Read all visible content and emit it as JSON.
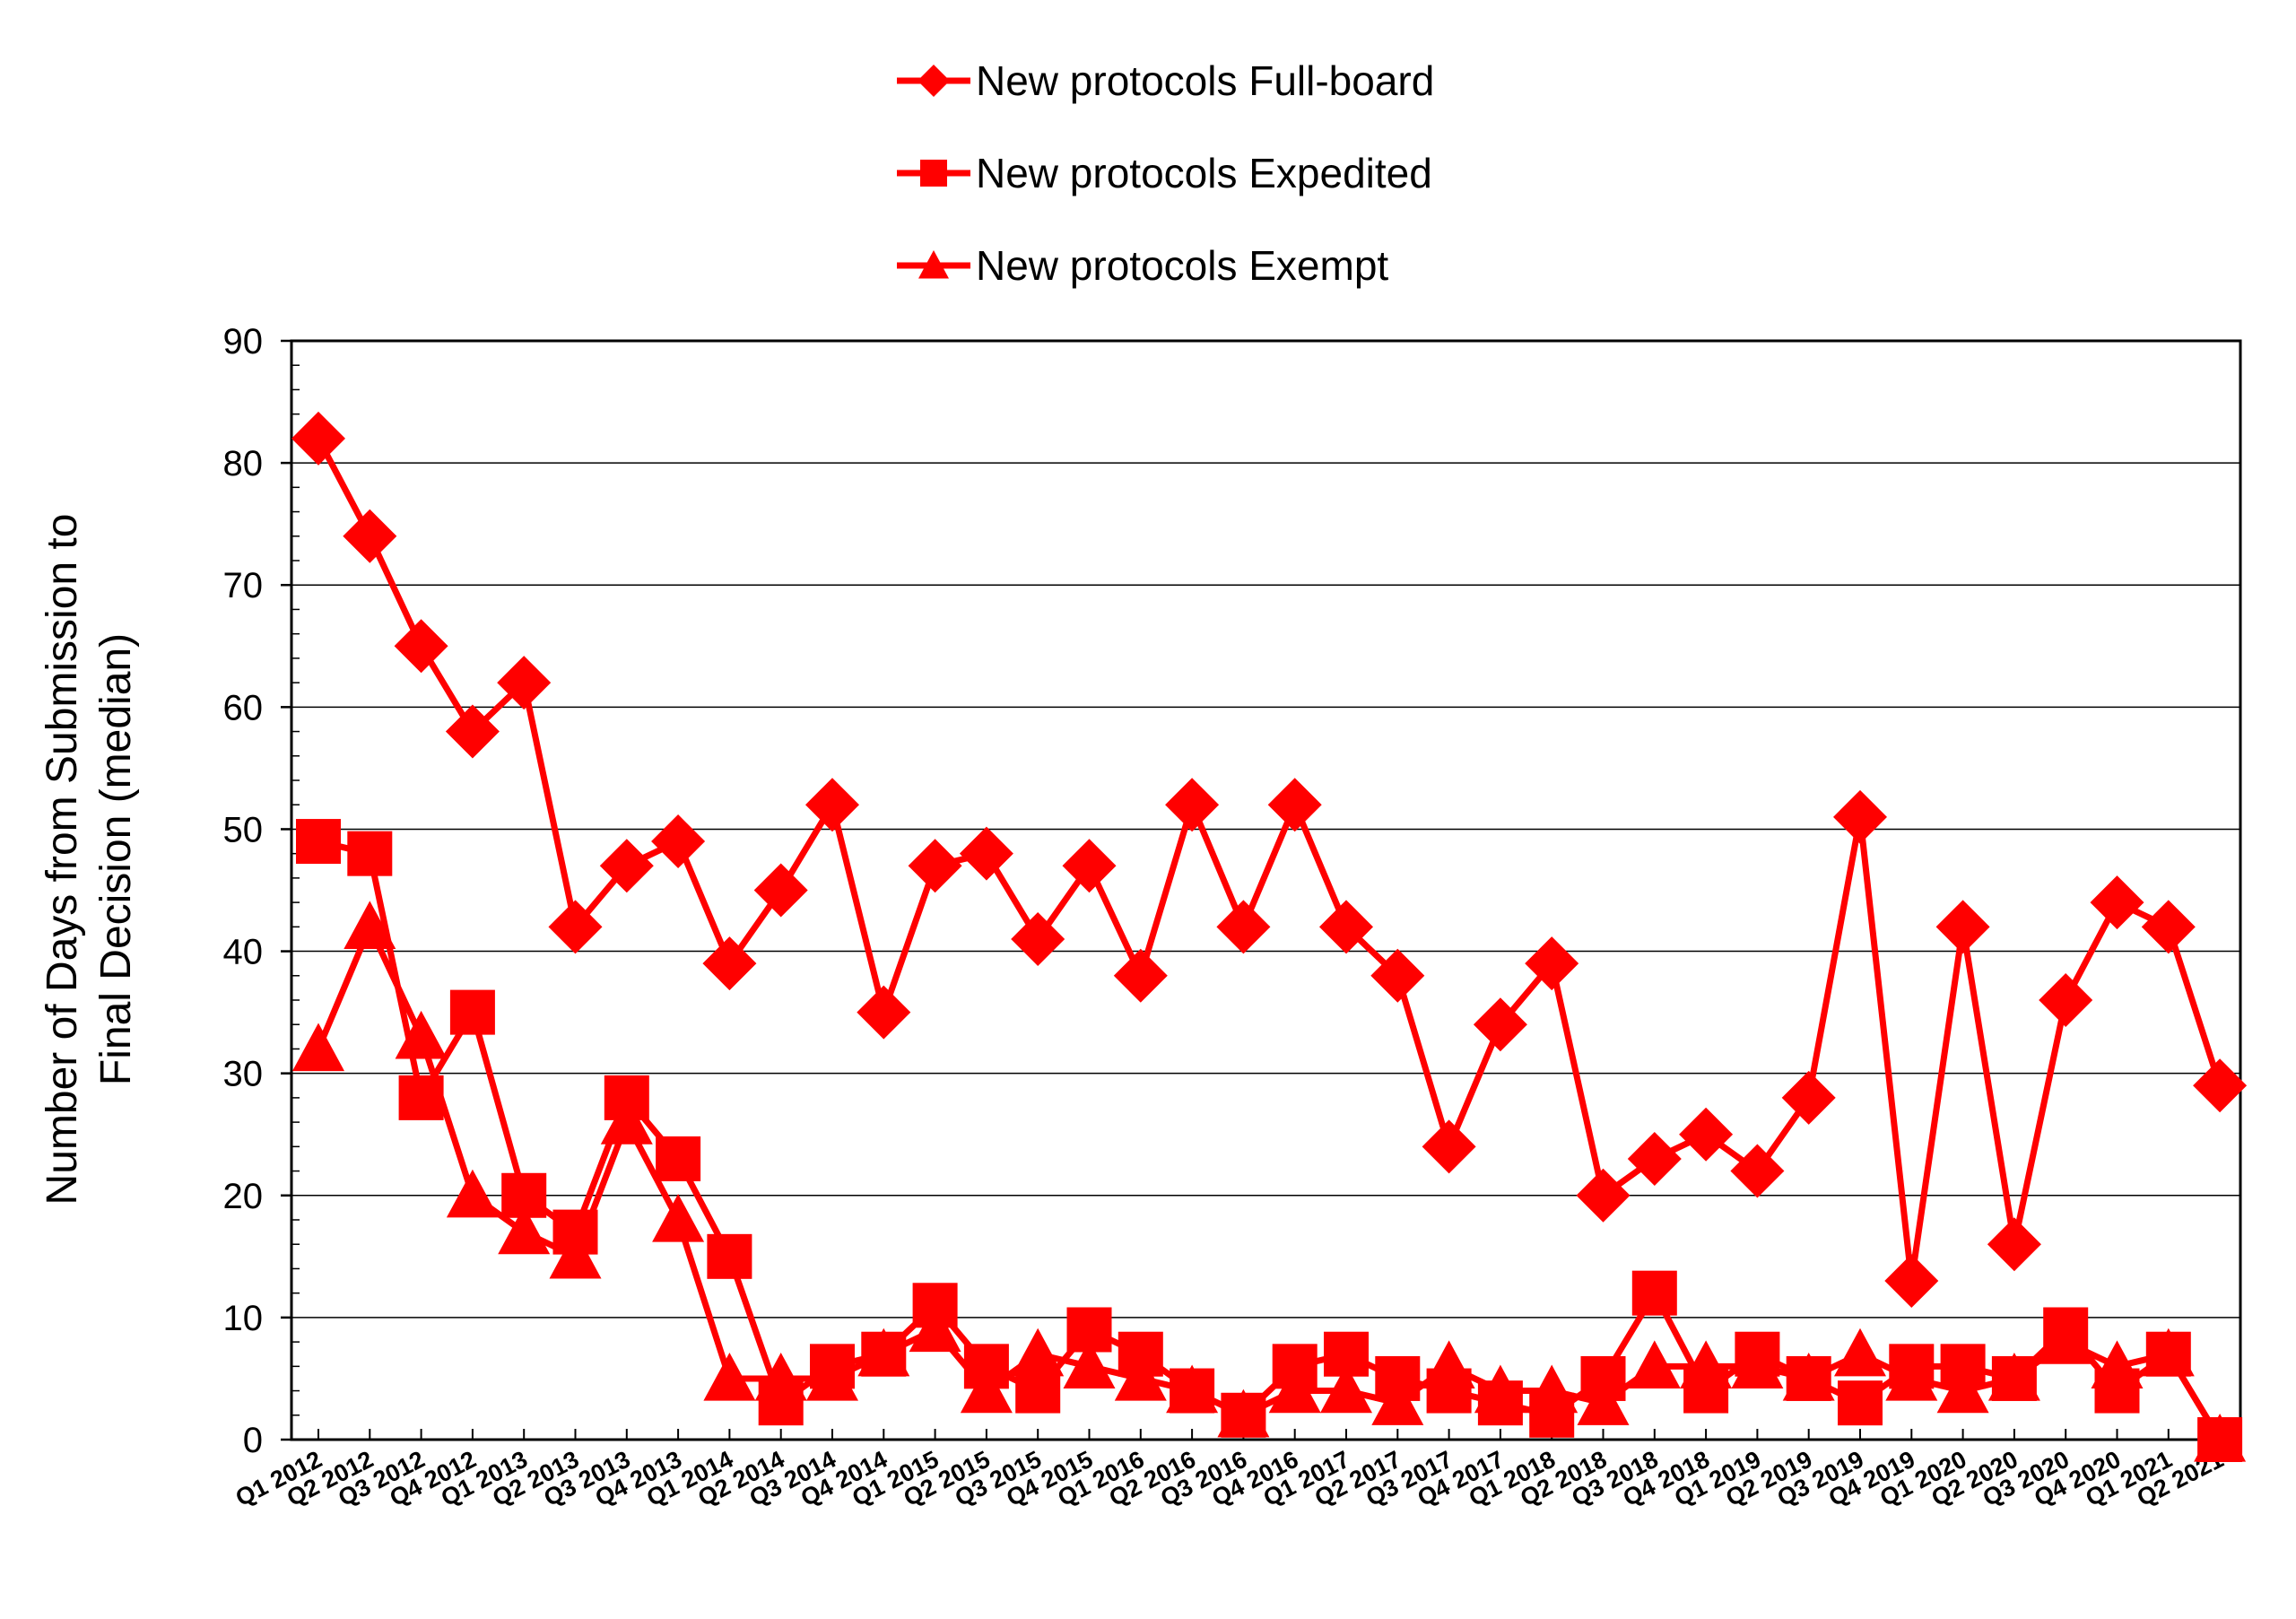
{
  "chart_data": {
    "type": "line",
    "title": "",
    "xlabel": "",
    "ylabel_lines": [
      "Number of Days from Submission to",
      "Final Decision (median)"
    ],
    "ylim": [
      0,
      90
    ],
    "y_ticks": [
      0,
      10,
      20,
      30,
      40,
      50,
      60,
      70,
      80,
      90
    ],
    "grid": "horizontal",
    "legend_position": "top-center",
    "line_color": "#ff0000",
    "categories": [
      "Q1 2012",
      "Q2 2012",
      "Q3 2012",
      "Q4 2012",
      "Q1 2013",
      "Q2 2013",
      "Q3 2013",
      "Q4 2013",
      "Q1 2014",
      "Q2 2014",
      "Q3 2014",
      "Q4 2014",
      "Q1 2015",
      "Q2 2015",
      "Q3 2015",
      "Q4 2015",
      "Q1 2016",
      "Q2 2016",
      "Q3 2016",
      "Q4 2016",
      "Q1 2017",
      "Q2 2017",
      "Q3 2017",
      "Q4 2017",
      "Q1 2018",
      "Q2 2018",
      "Q3 2018",
      "Q4 2018",
      "Q1 2019",
      "Q2 2019",
      "Q3 2019",
      "Q4 2019",
      "Q1 2020",
      "Q2 2020",
      "Q3 2020",
      "Q4 2020",
      "Q1 2021",
      "Q2 2021"
    ],
    "series": [
      {
        "name": "New protocols Full-board",
        "marker": "diamond",
        "values": [
          82,
          74,
          65,
          58,
          62,
          42,
          47,
          49,
          39,
          45,
          52,
          35,
          47,
          48,
          41,
          47,
          38,
          52,
          42,
          52,
          42,
          38,
          24,
          34,
          39,
          20,
          23,
          25,
          22,
          28,
          51,
          13,
          42,
          16,
          36,
          44,
          42,
          29
        ]
      },
      {
        "name": "New protocols Expedited",
        "marker": "square",
        "values": [
          49,
          48,
          28,
          35,
          20,
          17,
          28,
          23,
          15,
          3,
          6,
          7,
          11,
          6,
          4,
          9,
          7,
          4,
          2,
          6,
          7,
          5,
          4,
          3,
          2,
          5,
          12,
          4,
          7,
          5,
          3,
          6,
          6,
          5,
          9,
          4,
          7,
          0
        ]
      },
      {
        "name": "New protocols Exempt",
        "marker": "triangle",
        "values": [
          32,
          42,
          33,
          20,
          17,
          15,
          26,
          18,
          5,
          5,
          5,
          7,
          9,
          4,
          7,
          6,
          5,
          4,
          2,
          4,
          4,
          3,
          6,
          4,
          4,
          3,
          6,
          6,
          6,
          5,
          7,
          5,
          4,
          5,
          8,
          6,
          7,
          0
        ]
      }
    ]
  }
}
